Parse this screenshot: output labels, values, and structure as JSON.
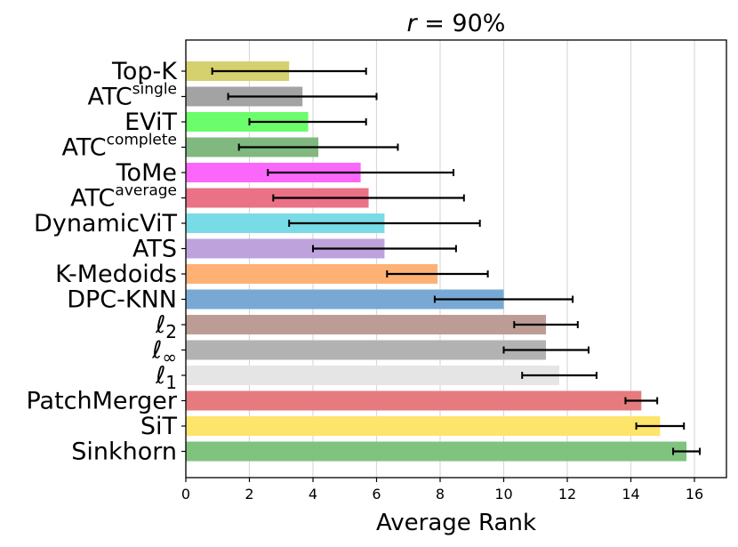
{
  "chart_data": {
    "type": "bar",
    "orientation": "horizontal",
    "title": "r = 90%",
    "title_parts": {
      "var": "r",
      "rest": " = 90%"
    },
    "xlabel": "Average Rank",
    "ylabel": "",
    "xlim": [
      0,
      17
    ],
    "xticks": [
      0,
      2,
      4,
      6,
      8,
      10,
      12,
      14,
      16
    ],
    "grid": "vertical",
    "categories": [
      {
        "label": "Top-K",
        "base": "Top-K",
        "script": "",
        "sup": ""
      },
      {
        "label": "ATC^single",
        "base": "ATC",
        "script": "",
        "sup": "single"
      },
      {
        "label": "EViT",
        "base": "EViT",
        "script": "",
        "sup": ""
      },
      {
        "label": "ATC^complete",
        "base": "ATC",
        "script": "",
        "sup": "complete"
      },
      {
        "label": "ToMe",
        "base": "ToMe",
        "script": "",
        "sup": ""
      },
      {
        "label": "ATC^average",
        "base": "ATC",
        "script": "",
        "sup": "average"
      },
      {
        "label": "DynamicViT",
        "base": "DynamicViT",
        "script": "",
        "sup": ""
      },
      {
        "label": "ATS",
        "base": "ATS",
        "script": "",
        "sup": ""
      },
      {
        "label": "K-Medoids",
        "base": "K-Medoids",
        "script": "",
        "sup": ""
      },
      {
        "label": "DPC-KNN",
        "base": "DPC-KNN",
        "script": "",
        "sup": ""
      },
      {
        "label": "ℓ2",
        "base": "ℓ",
        "script": "2",
        "sup": ""
      },
      {
        "label": "ℓ∞",
        "base": "ℓ",
        "script": "∞",
        "sup": ""
      },
      {
        "label": "ℓ1",
        "base": "ℓ",
        "script": "1",
        "sup": ""
      },
      {
        "label": "PatchMerger",
        "base": "PatchMerger",
        "script": "",
        "sup": ""
      },
      {
        "label": "SiT",
        "base": "SiT",
        "script": "",
        "sup": ""
      },
      {
        "label": "Sinkhorn",
        "base": "Sinkhorn",
        "script": "",
        "sup": ""
      }
    ],
    "values": [
      3.25,
      3.67,
      3.85,
      4.17,
      5.5,
      5.75,
      6.25,
      6.25,
      7.92,
      10.0,
      11.33,
      11.33,
      11.75,
      14.33,
      14.92,
      15.75
    ],
    "error_low": [
      0.83,
      1.33,
      2.0,
      1.67,
      2.58,
      2.75,
      3.25,
      4.0,
      6.33,
      7.83,
      10.33,
      10.0,
      10.58,
      13.83,
      14.17,
      15.33
    ],
    "error_high": [
      5.67,
      6.0,
      5.67,
      6.67,
      8.42,
      8.75,
      9.25,
      8.5,
      9.5,
      12.17,
      12.33,
      12.67,
      12.92,
      14.83,
      15.67,
      16.17
    ],
    "colors": [
      "#d4d16e",
      "#a3a3a3",
      "#6bfd6b",
      "#81b87f",
      "#fb67fb",
      "#e97286",
      "#78dbe6",
      "#bea2dc",
      "#fdb175",
      "#78a9d4",
      "#bd9c96",
      "#b2b2b2",
      "#e5e5e5",
      "#e57b7e",
      "#fde46a",
      "#7fc37f"
    ]
  }
}
